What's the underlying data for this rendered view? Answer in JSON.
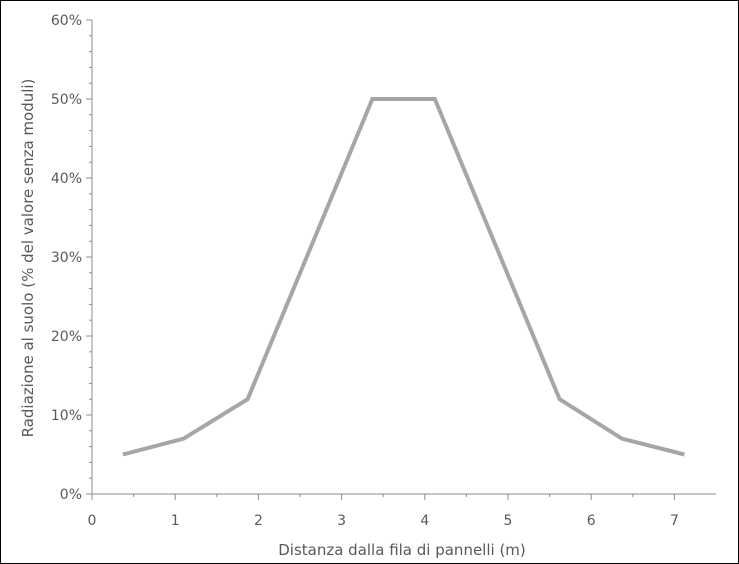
{
  "chart_data": {
    "type": "line",
    "title": "",
    "xlabel": "Distanza dalla fila di pannelli (m)",
    "ylabel": "Radiazione al suolo (% del valore senza moduli)",
    "xlim": [
      0,
      7.5
    ],
    "ylim": [
      0,
      60
    ],
    "x_ticks": [
      0,
      1,
      2,
      3,
      4,
      5,
      6,
      7
    ],
    "x_tick_labels": [
      "0",
      "1",
      "2",
      "3",
      "4",
      "5",
      "6",
      "7"
    ],
    "y_ticks": [
      0,
      10,
      20,
      30,
      40,
      50,
      60
    ],
    "y_tick_labels": [
      "0%",
      "10%",
      "20%",
      "30%",
      "40%",
      "50%",
      "60%"
    ],
    "grid": false,
    "legend": "none",
    "series": [
      {
        "color": "#a6a6a6",
        "x": [
          0.37,
          1.1,
          1.87,
          2.62,
          3.37,
          4.12,
          4.87,
          5.62,
          6.37,
          7.12
        ],
        "y": [
          5,
          7,
          12,
          31,
          50,
          50,
          31,
          12,
          7,
          5
        ]
      }
    ]
  }
}
